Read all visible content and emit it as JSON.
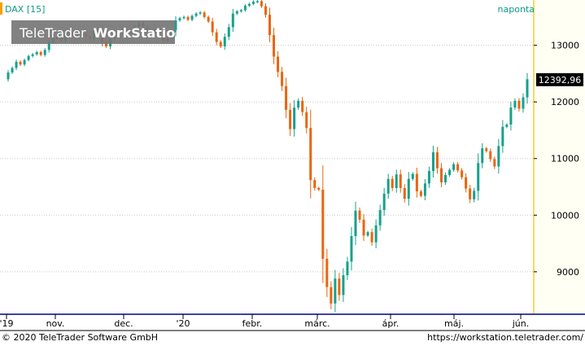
{
  "header": {
    "symbol_label": "DAX [15]",
    "period_label": "naponta",
    "watermark_brand": "TeleTrader",
    "watermark_product": "WorkStation"
  },
  "footer": {
    "copyright": "© 2020 TeleTrader Software GmbH",
    "url": "https://workstation.teletrader.com/"
  },
  "colors": {
    "up": "#17a08c",
    "down": "#e8650e",
    "accent": "#0e9a86",
    "last_price_bg": "#000000",
    "grid": "#c8c8c8",
    "axis_bg": "#fffff4"
  },
  "chart_data": {
    "type": "candlestick",
    "series_name": "DAX",
    "last_value_label": "12392,96",
    "last_value": 12392.96,
    "ylim": [
      8250,
      13800
    ],
    "y_ticks": [
      9000,
      10000,
      11000,
      12000,
      13000
    ],
    "x_tick_labels": [
      "'19",
      "nov.",
      "dec.",
      "'20",
      "febr.",
      "márc.",
      "ápr.",
      "máj.",
      "jún."
    ],
    "grid": true,
    "candles": [
      {
        "o": 12400,
        "c": 12520
      },
      {
        "o": 12520,
        "c": 12600
      },
      {
        "o": 12600,
        "c": 12710
      },
      {
        "o": 12710,
        "c": 12660
      },
      {
        "o": 12660,
        "c": 12740
      },
      {
        "o": 12740,
        "c": 12810
      },
      {
        "o": 12810,
        "c": 12840
      },
      {
        "o": 12840,
        "c": 12880
      },
      {
        "o": 12880,
        "c": 12830
      },
      {
        "o": 12830,
        "c": 12920
      },
      {
        "o": 12920,
        "c": 13050
      },
      {
        "o": 13050,
        "c": 13120
      },
      {
        "o": 13120,
        "c": 13150
      },
      {
        "o": 13150,
        "c": 13080
      },
      {
        "o": 13080,
        "c": 13200
      },
      {
        "o": 13200,
        "c": 13230
      },
      {
        "o": 13230,
        "c": 13180
      },
      {
        "o": 13180,
        "c": 13250
      },
      {
        "o": 13250,
        "c": 13210
      },
      {
        "o": 13210,
        "c": 13150
      },
      {
        "o": 13150,
        "c": 13120
      },
      {
        "o": 13120,
        "c": 13250
      },
      {
        "o": 13250,
        "c": 13280
      },
      {
        "o": 13280,
        "c": 13060
      },
      {
        "o": 13060,
        "c": 12980
      },
      {
        "o": 12980,
        "c": 13120
      },
      {
        "o": 13120,
        "c": 13240
      },
      {
        "o": 13240,
        "c": 13220
      },
      {
        "o": 13220,
        "c": 13300
      },
      {
        "o": 13300,
        "c": 13250
      },
      {
        "o": 13250,
        "c": 13220
      },
      {
        "o": 13220,
        "c": 13330
      },
      {
        "o": 13330,
        "c": 13400
      },
      {
        "o": 13400,
        "c": 13320
      },
      {
        "o": 13320,
        "c": 13250
      },
      {
        "o": 13250,
        "c": 13230
      },
      {
        "o": 13230,
        "c": 13280
      },
      {
        "o": 13280,
        "c": 13220
      },
      {
        "o": 13220,
        "c": 13080
      },
      {
        "o": 13080,
        "c": 13130
      },
      {
        "o": 13130,
        "c": 13230
      },
      {
        "o": 13230,
        "c": 13440
      },
      {
        "o": 13440,
        "c": 13480
      },
      {
        "o": 13480,
        "c": 13500
      },
      {
        "o": 13500,
        "c": 13450
      },
      {
        "o": 13450,
        "c": 13520
      },
      {
        "o": 13520,
        "c": 13560
      },
      {
        "o": 13560,
        "c": 13580
      },
      {
        "o": 13580,
        "c": 13500
      },
      {
        "o": 13500,
        "c": 13420
      },
      {
        "o": 13420,
        "c": 13230
      },
      {
        "o": 13230,
        "c": 13060
      },
      {
        "o": 13060,
        "c": 12980
      },
      {
        "o": 12980,
        "c": 13150
      },
      {
        "o": 13150,
        "c": 13320
      },
      {
        "o": 13320,
        "c": 13560
      },
      {
        "o": 13560,
        "c": 13600
      },
      {
        "o": 13600,
        "c": 13620
      },
      {
        "o": 13620,
        "c": 13700
      },
      {
        "o": 13700,
        "c": 13730
      },
      {
        "o": 13730,
        "c": 13770
      },
      {
        "o": 13770,
        "c": 13780
      },
      {
        "o": 13780,
        "c": 13690
      },
      {
        "o": 13690,
        "c": 13540
      },
      {
        "o": 13540,
        "c": 13180
      },
      {
        "o": 13180,
        "c": 12800
      },
      {
        "o": 12800,
        "c": 12530
      },
      {
        "o": 12530,
        "c": 12280
      },
      {
        "o": 12280,
        "c": 11860
      },
      {
        "o": 11860,
        "c": 11520
      },
      {
        "o": 11520,
        "c": 11900
      },
      {
        "o": 11900,
        "c": 12020
      },
      {
        "o": 12020,
        "c": 11820
      },
      {
        "o": 11820,
        "c": 11540
      },
      {
        "o": 11540,
        "c": 10620
      },
      {
        "o": 10620,
        "c": 10480
      },
      {
        "o": 10480,
        "c": 10450
      },
      {
        "o": 10450,
        "c": 9230
      },
      {
        "o": 9230,
        "c": 8730
      },
      {
        "o": 8730,
        "c": 8440
      },
      {
        "o": 8440,
        "c": 8880
      },
      {
        "o": 8880,
        "c": 8590
      },
      {
        "o": 8590,
        "c": 8940
      },
      {
        "o": 8940,
        "c": 9180
      },
      {
        "o": 9180,
        "c": 9630
      },
      {
        "o": 9630,
        "c": 10080
      },
      {
        "o": 10080,
        "c": 9920
      },
      {
        "o": 9920,
        "c": 9640
      },
      {
        "o": 9640,
        "c": 9700
      },
      {
        "o": 9700,
        "c": 9520
      },
      {
        "o": 9520,
        "c": 9820
      },
      {
        "o": 9820,
        "c": 10090
      },
      {
        "o": 10090,
        "c": 10380
      },
      {
        "o": 10380,
        "c": 10640
      },
      {
        "o": 10640,
        "c": 10480
      },
      {
        "o": 10480,
        "c": 10720
      },
      {
        "o": 10720,
        "c": 10480
      },
      {
        "o": 10480,
        "c": 10290
      },
      {
        "o": 10290,
        "c": 10640
      },
      {
        "o": 10640,
        "c": 10730
      },
      {
        "o": 10730,
        "c": 10420
      },
      {
        "o": 10420,
        "c": 10340
      },
      {
        "o": 10340,
        "c": 10560
      },
      {
        "o": 10560,
        "c": 10780
      },
      {
        "o": 10780,
        "c": 11110
      },
      {
        "o": 11110,
        "c": 10830
      },
      {
        "o": 10830,
        "c": 10580
      },
      {
        "o": 10580,
        "c": 10710
      },
      {
        "o": 10710,
        "c": 10800
      },
      {
        "o": 10800,
        "c": 10900
      },
      {
        "o": 10900,
        "c": 10790
      },
      {
        "o": 10790,
        "c": 10670
      },
      {
        "o": 10670,
        "c": 10470
      },
      {
        "o": 10470,
        "c": 10280
      },
      {
        "o": 10280,
        "c": 10430
      },
      {
        "o": 10430,
        "c": 10920
      },
      {
        "o": 10920,
        "c": 11180
      },
      {
        "o": 11180,
        "c": 11130
      },
      {
        "o": 11130,
        "c": 10990
      },
      {
        "o": 10990,
        "c": 10860
      },
      {
        "o": 10860,
        "c": 11220
      },
      {
        "o": 11220,
        "c": 11560
      },
      {
        "o": 11560,
        "c": 11600
      },
      {
        "o": 11600,
        "c": 11900
      },
      {
        "o": 11900,
        "c": 12020
      },
      {
        "o": 12020,
        "c": 11880
      },
      {
        "o": 11880,
        "c": 12080
      },
      {
        "o": 12080,
        "c": 12400
      }
    ]
  }
}
